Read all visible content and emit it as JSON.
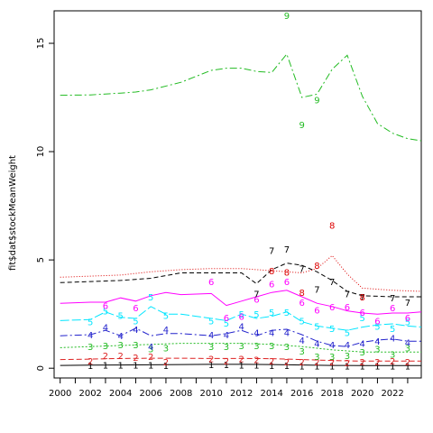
{
  "chart_data": {
    "type": "line",
    "title": "",
    "xlabel": "",
    "ylabel": "fit$dat$stockMeanWeight",
    "xlim": [
      1999.6,
      2023.9
    ],
    "ylim": [
      -0.45,
      16.5
    ],
    "xticks": [
      2000,
      2002,
      2004,
      2006,
      2008,
      2010,
      2012,
      2014,
      2016,
      2018,
      2020,
      2022
    ],
    "yticks": [
      0,
      5,
      10,
      15
    ],
    "grid": false,
    "legend": "none",
    "series": [
      {
        "label": "1",
        "color": "#000000",
        "dash": "",
        "line": [
          [
            2000,
            0.13
          ],
          [
            2002,
            0.14
          ],
          [
            2004,
            0.15
          ],
          [
            2006,
            0.16
          ],
          [
            2008,
            0.17
          ],
          [
            2010,
            0.18
          ],
          [
            2012,
            0.18
          ],
          [
            2014,
            0.17
          ],
          [
            2016,
            0.15
          ],
          [
            2018,
            0.13
          ],
          [
            2020,
            0.12
          ],
          [
            2022,
            0.12
          ],
          [
            2023.9,
            0.12
          ]
        ],
        "points": [
          [
            2002,
            0.14
          ],
          [
            2003,
            0.15
          ],
          [
            2004,
            0.16
          ],
          [
            2005,
            0.16
          ],
          [
            2006,
            0.15
          ],
          [
            2007,
            0.14
          ],
          [
            2010,
            0.17
          ],
          [
            2011,
            0.17
          ],
          [
            2012,
            0.16
          ],
          [
            2013,
            0.15
          ],
          [
            2014,
            0.14
          ],
          [
            2015,
            0.13
          ],
          [
            2016,
            0.12
          ],
          [
            2017,
            0.11
          ],
          [
            2018,
            0.11
          ],
          [
            2019,
            0.11
          ],
          [
            2020,
            0.11
          ],
          [
            2021,
            0.11
          ],
          [
            2022,
            0.11
          ],
          [
            2023,
            0.11
          ]
        ]
      },
      {
        "label": "2",
        "color": "#dd2222",
        "dash": "6,3",
        "line": [
          [
            2000,
            0.4
          ],
          [
            2002,
            0.42
          ],
          [
            2004,
            0.45
          ],
          [
            2006,
            0.46
          ],
          [
            2008,
            0.46
          ],
          [
            2010,
            0.45
          ],
          [
            2012,
            0.45
          ],
          [
            2014,
            0.44
          ],
          [
            2016,
            0.4
          ],
          [
            2018,
            0.36
          ],
          [
            2020,
            0.33
          ],
          [
            2022,
            0.33
          ],
          [
            2023.9,
            0.33
          ]
        ],
        "points": [
          [
            2002,
            0.35
          ],
          [
            2003,
            0.6
          ],
          [
            2004,
            0.6
          ],
          [
            2005,
            0.5
          ],
          [
            2006,
            0.55
          ],
          [
            2007,
            0.3
          ],
          [
            2010,
            0.45
          ],
          [
            2011,
            0.35
          ],
          [
            2012,
            0.45
          ],
          [
            2013,
            0.4
          ],
          [
            2014,
            0.35
          ],
          [
            2015,
            0.3
          ],
          [
            2016,
            0.3
          ],
          [
            2017,
            0.3
          ],
          [
            2018,
            0.3
          ],
          [
            2019,
            0.25
          ],
          [
            2020,
            0.3
          ],
          [
            2021,
            0.3
          ],
          [
            2022,
            0.35
          ],
          [
            2023,
            0.3
          ]
        ]
      },
      {
        "label": "3",
        "color": "#22bb22",
        "dash": "2,2",
        "line": [
          [
            2000,
            0.95
          ],
          [
            2002,
            1.0
          ],
          [
            2004,
            1.05
          ],
          [
            2006,
            1.1
          ],
          [
            2008,
            1.15
          ],
          [
            2010,
            1.15
          ],
          [
            2012,
            1.15
          ],
          [
            2014,
            1.1
          ],
          [
            2016,
            1.0
          ],
          [
            2018,
            0.85
          ],
          [
            2020,
            0.75
          ],
          [
            2022,
            0.75
          ],
          [
            2023.9,
            0.75
          ]
        ],
        "points": [
          [
            2002,
            1.0
          ],
          [
            2003,
            1.05
          ],
          [
            2004,
            1.1
          ],
          [
            2005,
            1.1
          ],
          [
            2006,
            0.9
          ],
          [
            2007,
            0.95
          ],
          [
            2010,
            1.0
          ],
          [
            2011,
            1.0
          ],
          [
            2012,
            1.05
          ],
          [
            2013,
            1.05
          ],
          [
            2014,
            1.05
          ],
          [
            2015,
            1.0
          ],
          [
            2016,
            0.8
          ],
          [
            2017,
            0.55
          ],
          [
            2018,
            0.55
          ],
          [
            2019,
            0.6
          ],
          [
            2020,
            0.75
          ],
          [
            2021,
            0.9
          ],
          [
            2022,
            0.65
          ],
          [
            2023,
            0.95
          ]
        ]
      },
      {
        "label": "4",
        "color": "#2222cc",
        "dash": "8,3,2,3",
        "line": [
          [
            2000,
            1.5
          ],
          [
            2002,
            1.55
          ],
          [
            2003,
            1.75
          ],
          [
            2004,
            1.5
          ],
          [
            2005,
            1.85
          ],
          [
            2006,
            1.5
          ],
          [
            2007,
            1.6
          ],
          [
            2008,
            1.6
          ],
          [
            2010,
            1.5
          ],
          [
            2011,
            1.6
          ],
          [
            2012,
            1.75
          ],
          [
            2013,
            1.5
          ],
          [
            2014,
            1.75
          ],
          [
            2015,
            1.8
          ],
          [
            2016,
            1.55
          ],
          [
            2017,
            1.25
          ],
          [
            2018,
            1.05
          ],
          [
            2019,
            1.0
          ],
          [
            2020,
            1.2
          ],
          [
            2021,
            1.3
          ],
          [
            2022,
            1.35
          ],
          [
            2023,
            1.25
          ],
          [
            2023.9,
            1.25
          ]
        ],
        "points": [
          [
            2002,
            1.55
          ],
          [
            2003,
            1.9
          ],
          [
            2004,
            1.5
          ],
          [
            2005,
            1.8
          ],
          [
            2006,
            1.0
          ],
          [
            2007,
            1.8
          ],
          [
            2010,
            1.55
          ],
          [
            2011,
            1.55
          ],
          [
            2012,
            1.95
          ],
          [
            2013,
            1.65
          ],
          [
            2014,
            1.65
          ],
          [
            2015,
            1.65
          ],
          [
            2016,
            1.3
          ],
          [
            2017,
            1.15
          ],
          [
            2018,
            1.1
          ],
          [
            2019,
            1.1
          ],
          [
            2020,
            1.15
          ],
          [
            2021,
            1.25
          ],
          [
            2022,
            1.4
          ],
          [
            2023,
            1.2
          ]
        ]
      },
      {
        "label": "5",
        "color": "#00e5ff",
        "dash": "10,3",
        "line": [
          [
            2000,
            2.2
          ],
          [
            2002,
            2.25
          ],
          [
            2003,
            2.6
          ],
          [
            2004,
            2.35
          ],
          [
            2005,
            2.3
          ],
          [
            2006,
            2.85
          ],
          [
            2007,
            2.5
          ],
          [
            2008,
            2.5
          ],
          [
            2010,
            2.3
          ],
          [
            2011,
            2.2
          ],
          [
            2012,
            2.5
          ],
          [
            2013,
            2.3
          ],
          [
            2014,
            2.4
          ],
          [
            2015,
            2.6
          ],
          [
            2016,
            2.15
          ],
          [
            2017,
            1.95
          ],
          [
            2018,
            1.85
          ],
          [
            2019,
            1.75
          ],
          [
            2020,
            1.9
          ],
          [
            2021,
            2.0
          ],
          [
            2022,
            2.05
          ],
          [
            2023,
            1.95
          ],
          [
            2023.9,
            1.9
          ]
        ],
        "points": [
          [
            2002,
            2.15
          ],
          [
            2003,
            2.65
          ],
          [
            2004,
            2.45
          ],
          [
            2005,
            2.2
          ],
          [
            2006,
            3.3
          ],
          [
            2007,
            2.45
          ],
          [
            2010,
            2.2
          ],
          [
            2011,
            2.1
          ],
          [
            2012,
            2.5
          ],
          [
            2013,
            2.5
          ],
          [
            2014,
            2.6
          ],
          [
            2015,
            2.6
          ],
          [
            2016,
            2.2
          ],
          [
            2017,
            1.95
          ],
          [
            2018,
            1.85
          ],
          [
            2019,
            1.65
          ],
          [
            2020,
            2.35
          ],
          [
            2021,
            1.95
          ],
          [
            2022,
            1.85
          ],
          [
            2023,
            2.15
          ]
        ]
      },
      {
        "label": "6",
        "color": "#ff00ff",
        "dash": "",
        "line": [
          [
            2000,
            3.0
          ],
          [
            2002,
            3.05
          ],
          [
            2003,
            3.05
          ],
          [
            2004,
            3.25
          ],
          [
            2005,
            3.1
          ],
          [
            2006,
            3.35
          ],
          [
            2007,
            3.5
          ],
          [
            2008,
            3.4
          ],
          [
            2010,
            3.45
          ],
          [
            2011,
            2.9
          ],
          [
            2012,
            3.1
          ],
          [
            2013,
            3.3
          ],
          [
            2014,
            3.5
          ],
          [
            2015,
            3.6
          ],
          [
            2016,
            3.3
          ],
          [
            2017,
            3.0
          ],
          [
            2018,
            2.85
          ],
          [
            2019,
            2.65
          ],
          [
            2020,
            2.55
          ],
          [
            2021,
            2.5
          ],
          [
            2022,
            2.55
          ],
          [
            2023,
            2.55
          ],
          [
            2023.9,
            2.6
          ]
        ],
        "points": [
          [
            2003,
            2.9
          ],
          [
            2005,
            2.8
          ],
          [
            2010,
            4.0
          ],
          [
            2011,
            2.35
          ],
          [
            2012,
            2.4
          ],
          [
            2013,
            3.2
          ],
          [
            2014,
            3.9
          ],
          [
            2015,
            4.0
          ],
          [
            2016,
            3.05
          ],
          [
            2017,
            2.7
          ],
          [
            2018,
            2.85
          ],
          [
            2019,
            2.85
          ],
          [
            2020,
            2.6
          ],
          [
            2021,
            2.2
          ],
          [
            2022,
            2.8
          ],
          [
            2023,
            2.35
          ]
        ]
      },
      {
        "label": "7",
        "color": "#000000",
        "dash": "5,3",
        "line": [
          [
            2000,
            3.95
          ],
          [
            2002,
            4.0
          ],
          [
            2004,
            4.05
          ],
          [
            2006,
            4.15
          ],
          [
            2008,
            4.4
          ],
          [
            2010,
            4.4
          ],
          [
            2011,
            4.4
          ],
          [
            2012,
            4.4
          ],
          [
            2013,
            3.9
          ],
          [
            2014,
            4.55
          ],
          [
            2015,
            4.85
          ],
          [
            2016,
            4.75
          ],
          [
            2017,
            4.45
          ],
          [
            2018,
            4.05
          ],
          [
            2019,
            3.55
          ],
          [
            2020,
            3.35
          ],
          [
            2022,
            3.3
          ],
          [
            2023.9,
            3.3
          ]
        ],
        "points": [
          [
            2013,
            3.45
          ],
          [
            2014,
            5.45
          ],
          [
            2015,
            5.5
          ],
          [
            2016,
            4.6
          ],
          [
            2017,
            3.65
          ],
          [
            2018,
            4.0
          ],
          [
            2019,
            3.45
          ],
          [
            2020,
            3.3
          ],
          [
            2022,
            3.25
          ],
          [
            2023,
            3.05
          ]
        ]
      },
      {
        "label": "8",
        "color": "#dd0000",
        "dash": "1,2",
        "line": [
          [
            2000,
            4.2
          ],
          [
            2002,
            4.25
          ],
          [
            2004,
            4.3
          ],
          [
            2006,
            4.45
          ],
          [
            2008,
            4.55
          ],
          [
            2010,
            4.6
          ],
          [
            2012,
            4.6
          ],
          [
            2014,
            4.5
          ],
          [
            2015,
            4.45
          ],
          [
            2016,
            4.4
          ],
          [
            2017,
            4.6
          ],
          [
            2018,
            5.2
          ],
          [
            2019,
            4.35
          ],
          [
            2020,
            3.7
          ],
          [
            2022,
            3.6
          ],
          [
            2023.9,
            3.55
          ]
        ],
        "points": [
          [
            2014,
            4.5
          ],
          [
            2015,
            4.45
          ],
          [
            2016,
            3.5
          ],
          [
            2017,
            4.75
          ],
          [
            2018,
            6.6
          ],
          [
            2020,
            3.3
          ]
        ]
      },
      {
        "label": "9",
        "color": "#22bb22",
        "dash": "8,3,2,3",
        "line": [
          [
            2000,
            12.6
          ],
          [
            2002,
            12.62
          ],
          [
            2004,
            12.7
          ],
          [
            2005,
            12.75
          ],
          [
            2006,
            12.85
          ],
          [
            2008,
            13.2
          ],
          [
            2010,
            13.75
          ],
          [
            2011,
            13.85
          ],
          [
            2012,
            13.85
          ],
          [
            2013,
            13.7
          ],
          [
            2014,
            13.65
          ],
          [
            2015,
            14.5
          ],
          [
            2016,
            12.5
          ],
          [
            2017,
            12.65
          ],
          [
            2018,
            13.8
          ],
          [
            2019,
            14.45
          ],
          [
            2020,
            12.55
          ],
          [
            2021,
            11.3
          ],
          [
            2022,
            10.85
          ],
          [
            2023,
            10.6
          ],
          [
            2023.9,
            10.5
          ]
        ],
        "points": [
          [
            2015,
            16.3
          ],
          [
            2016,
            11.25
          ],
          [
            2017,
            12.4
          ]
        ]
      }
    ]
  }
}
